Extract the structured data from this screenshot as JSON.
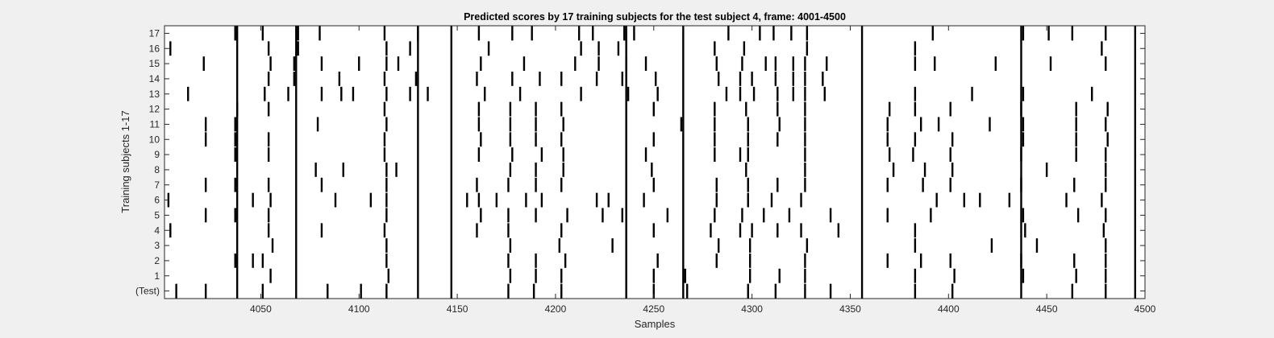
{
  "chart_data": {
    "type": "raster",
    "title": "Predicted scores by 17 training subjects for the test subject 4, frame: 4001-4500",
    "xlabel": "Samples",
    "ylabel": "Training subjects 1-17",
    "xlim": [
      4001,
      4500
    ],
    "x_ticks": [
      4050,
      4100,
      4150,
      4200,
      4250,
      4300,
      4350,
      4400,
      4450,
      4500
    ],
    "row_labels": [
      "(Test)",
      "1",
      "2",
      "3",
      "4",
      "5",
      "6",
      "7",
      "8",
      "9",
      "10",
      "11",
      "12",
      "13",
      "14",
      "15",
      "16",
      "17"
    ],
    "common_events": [
      4038,
      4068,
      4130,
      4147,
      4236,
      4265,
      4356,
      4437,
      4495
    ],
    "rows": [
      {
        "label": "(Test)",
        "events": [
          4007,
          4022,
          4051,
          4084,
          4101,
          4114,
          4176,
          4189,
          4203,
          4250,
          4267,
          4298,
          4312,
          4327,
          4340,
          4383,
          4402,
          4463,
          4480
        ]
      },
      {
        "label": "1",
        "events": [
          4055,
          4115,
          4177,
          4190,
          4203,
          4250,
          4266,
          4299,
          4314,
          4327,
          4383,
          4403,
          4438,
          4465,
          4480
        ]
      },
      {
        "label": "2",
        "events": [
          4037,
          4046,
          4051,
          4114,
          4176,
          4190,
          4205,
          4252,
          4282,
          4299,
          4327,
          4369,
          4386,
          4401,
          4437,
          4464,
          4480
        ]
      },
      {
        "label": "3",
        "events": [
          4056,
          4114,
          4177,
          4202,
          4229,
          4283,
          4299,
          4328,
          4383,
          4422,
          4445,
          4480
        ]
      },
      {
        "label": "4",
        "events": [
          4004,
          4054,
          4081,
          4113,
          4160,
          4176,
          4203,
          4250,
          4279,
          4294,
          4300,
          4313,
          4325,
          4344,
          4383,
          4439,
          4479
        ]
      },
      {
        "label": "5",
        "events": [
          4022,
          4037,
          4054,
          4114,
          4162,
          4176,
          4190,
          4206,
          4224,
          4234,
          4257,
          4281,
          4295,
          4306,
          4319,
          4340,
          4369,
          4391,
          4438,
          4466,
          4480
        ]
      },
      {
        "label": "6",
        "events": [
          4003,
          4046,
          4055,
          4088,
          4106,
          4114,
          4155,
          4161,
          4170,
          4185,
          4193,
          4221,
          4227,
          4245,
          4282,
          4298,
          4310,
          4325,
          4394,
          4408,
          4416,
          4431,
          4460,
          4478
        ]
      },
      {
        "label": "7",
        "events": [
          4022,
          4037,
          4054,
          4081,
          4114,
          4160,
          4176,
          4190,
          4203,
          4250,
          4282,
          4298,
          4313,
          4327,
          4369,
          4387,
          4401,
          4437,
          4464,
          4480
        ]
      },
      {
        "label": "8",
        "events": [
          4078,
          4092,
          4114,
          4119,
          4177,
          4190,
          4204,
          4249,
          4297,
          4327,
          4372,
          4388,
          4402,
          4450,
          4480
        ]
      },
      {
        "label": "9",
        "events": [
          4037,
          4054,
          4113,
          4161,
          4178,
          4193,
          4204,
          4246,
          4281,
          4294,
          4298,
          4327,
          4370,
          4382,
          4401,
          4437,
          4465,
          4480
        ]
      },
      {
        "label": "10",
        "events": [
          4022,
          4037,
          4054,
          4113,
          4162,
          4177,
          4190,
          4203,
          4250,
          4281,
          4298,
          4313,
          4327,
          4369,
          4383,
          4402,
          4438,
          4465,
          4481
        ]
      },
      {
        "label": "11",
        "events": [
          4022,
          4037,
          4079,
          4114,
          4161,
          4177,
          4190,
          4204,
          4264,
          4281,
          4298,
          4314,
          4327,
          4369,
          4386,
          4395,
          4421,
          4438,
          4465,
          4480
        ]
      },
      {
        "label": "12",
        "events": [
          4038,
          4054,
          4113,
          4161,
          4177,
          4190,
          4203,
          4250,
          4281,
          4297,
          4313,
          4327,
          4370,
          4383,
          4401,
          4437,
          4465,
          4481
        ]
      },
      {
        "label": "13",
        "events": [
          4013,
          4052,
          4064,
          4081,
          4091,
          4097,
          4114,
          4126,
          4135,
          4164,
          4182,
          4213,
          4237,
          4252,
          4287,
          4294,
          4301,
          4313,
          4321,
          4327,
          4337,
          4383,
          4412,
          4438,
          4473
        ]
      },
      {
        "label": "14",
        "events": [
          4054,
          4067,
          4090,
          4113,
          4129,
          4160,
          4178,
          4192,
          4203,
          4221,
          4234,
          4251,
          4283,
          4294,
          4300,
          4312,
          4321,
          4327,
          4336
        ]
      },
      {
        "label": "15",
        "events": [
          4021,
          4055,
          4067,
          4081,
          4100,
          4114,
          4120,
          4162,
          4184,
          4210,
          4222,
          4236,
          4246,
          4282,
          4295,
          4307,
          4312,
          4321,
          4327,
          4338,
          4383,
          4393,
          4424,
          4452,
          4480
        ]
      },
      {
        "label": "16",
        "events": [
          4004,
          4054,
          4069,
          4114,
          4126,
          4166,
          4213,
          4222,
          4232,
          4281,
          4296,
          4328,
          4383,
          4478
        ]
      },
      {
        "label": "17",
        "events": [
          4037,
          4051,
          4069,
          4080,
          4113,
          4130,
          4161,
          4178,
          4188,
          4212,
          4219,
          4235,
          4240,
          4288,
          4304,
          4311,
          4320,
          4328,
          4392,
          4438,
          4451,
          4463,
          4480
        ]
      }
    ]
  }
}
